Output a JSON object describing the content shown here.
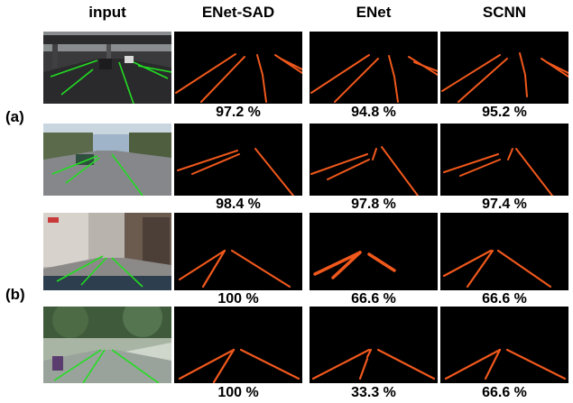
{
  "columns": [
    {
      "key": "input",
      "label": "input"
    },
    {
      "key": "enet_sad",
      "label": "ENet-SAD"
    },
    {
      "key": "enet",
      "label": "ENet"
    },
    {
      "key": "scnn",
      "label": "SCNN"
    }
  ],
  "groups": [
    {
      "label": "(a)"
    },
    {
      "label": "(b)"
    }
  ],
  "rows": [
    {
      "group": "(a)",
      "scene": "highway overpass, dark road, white lane markings",
      "accuracy": {
        "enet_sad": "97.2 %",
        "enet": "94.8 %",
        "scnn": "95.2 %"
      }
    },
    {
      "group": "(a)",
      "scene": "sunny road with trees, car ahead",
      "accuracy": {
        "enet_sad": "98.4 %",
        "enet": "97.8 %",
        "scnn": "97.4 %"
      }
    },
    {
      "group": "(b)",
      "scene": "street under buildings, dashboard visible",
      "accuracy": {
        "enet_sad": "100 %",
        "enet": "66.6 %",
        "scnn": "66.6 %"
      }
    },
    {
      "group": "(b)",
      "scene": "tree-lined street, glare on windshield",
      "accuracy": {
        "enet_sad": "100 %",
        "enet": "33.3 %",
        "scnn": "66.6 %"
      }
    }
  ],
  "colors": {
    "lane_gt": "#22dd22",
    "lane_pred": "#f0581c",
    "pred_bg": "#000000"
  }
}
